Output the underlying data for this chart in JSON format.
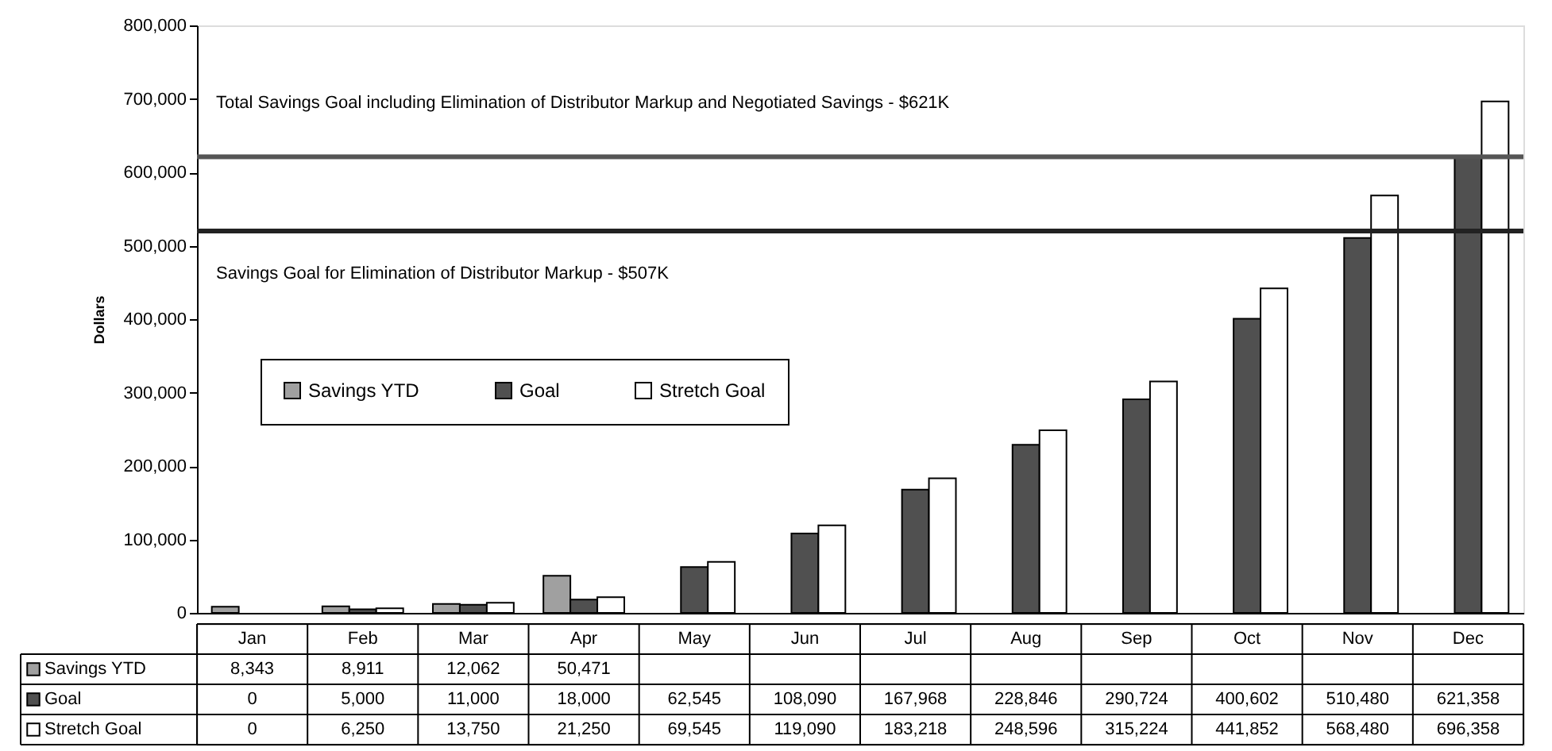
{
  "chart_data": {
    "type": "bar",
    "categories": [
      "Jan",
      "Feb",
      "Mar",
      "Apr",
      "May",
      "Jun",
      "Jul",
      "Aug",
      "Sep",
      "Oct",
      "Nov",
      "Dec"
    ],
    "series": [
      {
        "name": "Savings YTD",
        "color": "#a0a0a0",
        "values": [
          8343,
          8911,
          12062,
          50471,
          null,
          null,
          null,
          null,
          null,
          null,
          null,
          null
        ],
        "value_labels": [
          "8,343",
          "8,911",
          "12,062",
          "50,471",
          null,
          null,
          null,
          null,
          null,
          null,
          null,
          null
        ]
      },
      {
        "name": "Goal",
        "color": "#505050",
        "values": [
          0,
          5000,
          11000,
          18000,
          62545,
          108090,
          167968,
          228846,
          290724,
          400602,
          510480,
          621358
        ],
        "value_labels": [
          "0",
          "5,000",
          "11,000",
          "18,000",
          "62,545",
          "108,090",
          "167,968",
          "228,846",
          "290,724",
          "400,602",
          "510,480",
          "621,358"
        ]
      },
      {
        "name": "Stretch Goal",
        "color": "#ffffff",
        "values": [
          0,
          6250,
          13750,
          21250,
          69545,
          119090,
          183218,
          248596,
          315224,
          441852,
          568480,
          696358
        ],
        "value_labels": [
          "0",
          "6,250",
          "13,750",
          "21,250",
          "69,545",
          "119,090",
          "183,218",
          "248,596",
          "315,224",
          "441,852",
          "568,480",
          "696,358"
        ]
      }
    ],
    "ylabel": "Dollars",
    "ylim": [
      0,
      800000
    ],
    "yticks": [
      {
        "value": 0,
        "label": "0"
      },
      {
        "value": 100000,
        "label": "100,000"
      },
      {
        "value": 200000,
        "label": "200,000"
      },
      {
        "value": 300000,
        "label": "300,000"
      },
      {
        "value": 400000,
        "label": "400,000"
      },
      {
        "value": 500000,
        "label": "500,000"
      },
      {
        "value": 600000,
        "label": "600,000"
      },
      {
        "value": 700000,
        "label": "700,000"
      },
      {
        "value": 800000,
        "label": "800,000"
      }
    ],
    "ref_lines": [
      {
        "axis": "y",
        "value": 621000,
        "label": "Total Savings Goal including Elimination of Distributor Markup and Negotiated Savings - $621K",
        "color": "#555555"
      },
      {
        "axis": "y",
        "value": 520000,
        "label": "Savings Goal for Elimination of Distributor Markup - $507K",
        "color": "#222222"
      }
    ],
    "legend": "left",
    "grid": false
  }
}
